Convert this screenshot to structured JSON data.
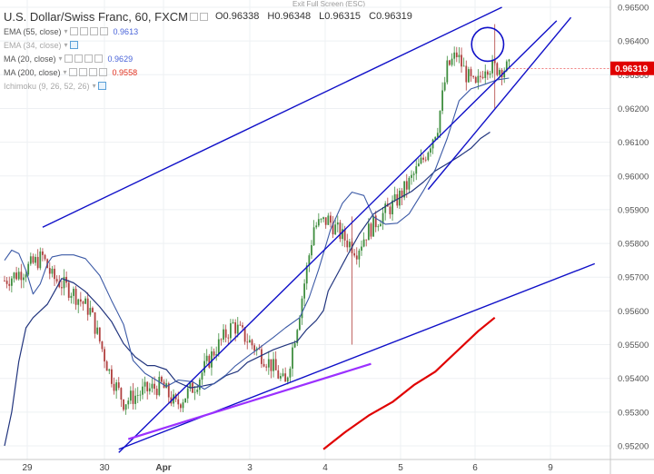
{
  "header": {
    "title": "U.S. Dollar/Swiss Franc, 60, FXCM",
    "ohlc": {
      "open": "O0.96338",
      "high": "H0.96348",
      "low": "L0.96315",
      "close": "C0.96319"
    },
    "exit_fullscreen": "Exit Full Screen (ESC)"
  },
  "indicators": [
    {
      "label": "EMA (55, close)",
      "value": "0.9613",
      "value_color": "#4a64d9",
      "dim": false
    },
    {
      "label": "EMA (34, close)",
      "value": "",
      "value_color": "#a8a8a8",
      "dim": true
    },
    {
      "label": "MA (20, close)",
      "value": "0.9629",
      "value_color": "#4a64d9",
      "dim": false
    },
    {
      "label": "MA (200, close)",
      "value": "0.9558",
      "value_color": "#e0301e",
      "dim": false
    },
    {
      "label": "Ichimoku (9, 26, 52, 26)",
      "value": "",
      "value_color": "#a8a8a8",
      "dim": true
    }
  ],
  "colors": {
    "up": "#3f8e3f",
    "down": "#b0403f",
    "ema55": "#22357e",
    "ma20": "#3c5aa6",
    "ma200": "#e00000",
    "channel": "#1010c8",
    "support": "#9b30ff",
    "price_badge": "#e00000"
  },
  "chart_data": {
    "type": "candlestick",
    "y_ticks": [
      "0.96500",
      "0.96400",
      "0.96300",
      "0.96200",
      "0.96100",
      "0.96000",
      "0.95900",
      "0.95800",
      "0.95700",
      "0.95600",
      "0.95500",
      "0.95400",
      "0.95300",
      "0.95200"
    ],
    "ylim": [
      0.9517,
      0.9651
    ],
    "x_ticks": [
      "29",
      "30",
      "Apr",
      "3",
      "4",
      "5",
      "6",
      "9"
    ],
    "last_price_label": "0.96319",
    "last_price": 0.96319,
    "ema55": [
      [
        0,
        0.952
      ],
      [
        3,
        0.953
      ],
      [
        6,
        0.9545
      ],
      [
        9,
        0.9555
      ],
      [
        12,
        0.9558
      ],
      [
        15,
        0.956
      ],
      [
        18,
        0.9562
      ],
      [
        22,
        0.9567
      ],
      [
        24,
        0.95696
      ],
      [
        29,
        0.95683
      ],
      [
        34,
        0.95657
      ],
      [
        40,
        0.95612
      ],
      [
        45,
        0.95568
      ],
      [
        50,
        0.95503
      ],
      [
        55,
        0.95463
      ],
      [
        60,
        0.95438
      ],
      [
        63,
        0.95438
      ],
      [
        68,
        0.95426
      ],
      [
        72,
        0.95391
      ],
      [
        78,
        0.95372
      ],
      [
        83,
        0.95377
      ],
      [
        88,
        0.95384
      ],
      [
        93,
        0.95408
      ],
      [
        98,
        0.95421
      ],
      [
        102,
        0.95447
      ],
      [
        108,
        0.95468
      ],
      [
        113,
        0.95485
      ],
      [
        118,
        0.95498
      ],
      [
        123,
        0.9551
      ],
      [
        127,
        0.95545
      ],
      [
        131,
        0.95572
      ],
      [
        134,
        0.95601
      ],
      [
        136,
        0.95659
      ],
      [
        140,
        0.95711
      ],
      [
        144,
        0.95764
      ],
      [
        149,
        0.95827
      ],
      [
        155,
        0.95887
      ],
      [
        163,
        0.95923
      ],
      [
        171,
        0.95954
      ],
      [
        176,
        0.95982
      ],
      [
        181,
        0.96015
      ],
      [
        186,
        0.96036
      ],
      [
        191,
        0.96058
      ],
      [
        196,
        0.96082
      ],
      [
        200,
        0.96111
      ],
      [
        204,
        0.9613
      ]
    ],
    "ma20": [
      [
        0,
        0.9575
      ],
      [
        3,
        0.9578
      ],
      [
        6,
        0.9577
      ],
      [
        9,
        0.9572
      ],
      [
        12,
        0.9565
      ],
      [
        15,
        0.9568
      ],
      [
        18,
        0.9574
      ],
      [
        20,
        0.9576
      ],
      [
        24,
        0.95766
      ],
      [
        29,
        0.95766
      ],
      [
        34,
        0.95755
      ],
      [
        40,
        0.95705
      ],
      [
        45,
        0.9563
      ],
      [
        50,
        0.9556
      ],
      [
        54,
        0.95453
      ],
      [
        59,
        0.95415
      ],
      [
        63,
        0.95398
      ],
      [
        68,
        0.95376
      ],
      [
        73,
        0.95395
      ],
      [
        79,
        0.9539
      ],
      [
        84,
        0.95368
      ],
      [
        88,
        0.95385
      ],
      [
        93,
        0.9541
      ],
      [
        97,
        0.95437
      ],
      [
        102,
        0.95464
      ],
      [
        107,
        0.9549
      ],
      [
        113,
        0.95522
      ],
      [
        118,
        0.9555
      ],
      [
        124,
        0.9558
      ],
      [
        128,
        0.9564
      ],
      [
        132,
        0.95723
      ],
      [
        137,
        0.95841
      ],
      [
        142,
        0.95919
      ],
      [
        146,
        0.95952
      ],
      [
        151,
        0.95942
      ],
      [
        155,
        0.95879
      ],
      [
        160,
        0.95857
      ],
      [
        165,
        0.9586
      ],
      [
        170,
        0.95888
      ],
      [
        176,
        0.95956
      ],
      [
        181,
        0.96019
      ],
      [
        186,
        0.96111
      ],
      [
        191,
        0.96223
      ],
      [
        196,
        0.96258
      ],
      [
        202,
        0.96272
      ],
      [
        207,
        0.96285
      ],
      [
        212,
        0.9629
      ]
    ],
    "ma200": [
      [
        134,
        0.9519
      ],
      [
        143,
        0.9524
      ],
      [
        153,
        0.9529
      ],
      [
        163,
        0.9533
      ],
      [
        172,
        0.9538
      ],
      [
        181,
        0.9542
      ],
      [
        190,
        0.9548
      ],
      [
        199,
        0.9554
      ],
      [
        206,
        0.9558
      ]
    ],
    "channel_top": [
      [
        16,
        0.95848
      ],
      [
        209,
        0.965
      ]
    ],
    "channel_bottom": [
      [
        48,
        0.9518
      ],
      [
        232,
        0.9646
      ]
    ],
    "support_line": [
      [
        48,
        0.9519
      ],
      [
        248,
        0.9574
      ]
    ],
    "support_purple": [
      [
        52,
        0.9522
      ],
      [
        154,
        0.95443
      ]
    ],
    "circle_marker": {
      "center": [
        203,
        0.9639
      ],
      "radius_data": 0.0005
    }
  }
}
